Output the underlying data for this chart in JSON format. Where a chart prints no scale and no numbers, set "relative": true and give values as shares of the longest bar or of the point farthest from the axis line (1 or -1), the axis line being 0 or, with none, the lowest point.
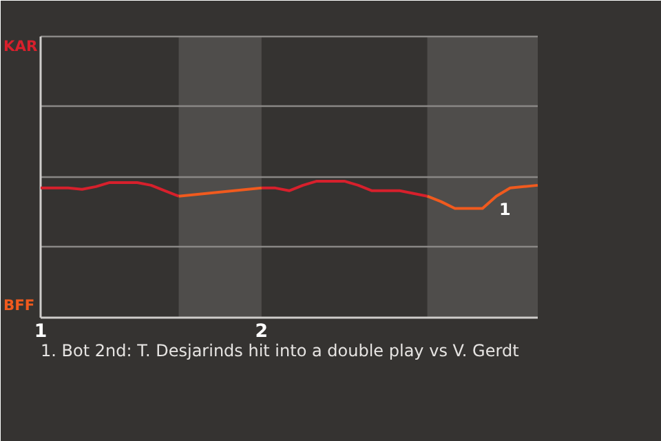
{
  "chart_data": {
    "type": "line",
    "relative": true,
    "categories": [
      "1",
      null,
      null,
      null,
      null,
      null,
      null,
      null,
      null,
      null,
      null,
      null,
      null,
      null,
      null,
      null,
      "2",
      null,
      null,
      null,
      null,
      null,
      null,
      null,
      null,
      null,
      null,
      null,
      null,
      null,
      null,
      null,
      null,
      null,
      null,
      null,
      null
    ],
    "series": [
      {
        "color": "#d7202c",
        "values": [
          0.95,
          0.95,
          0.95,
          0.94,
          0.96,
          0.99,
          0.99,
          0.99,
          0.97,
          0.93,
          0.89,
          null,
          null,
          null,
          null,
          null,
          0.95,
          0.95,
          0.93,
          0.97,
          1,
          1,
          1,
          0.97,
          0.93,
          0.93,
          0.93,
          0.91,
          0.89,
          null,
          null,
          null,
          null,
          null,
          null,
          null,
          null
        ]
      },
      {
        "color": "#f05a1e",
        "values": [
          null,
          null,
          null,
          null,
          null,
          null,
          null,
          null,
          null,
          null,
          0.89,
          0.9,
          0.91,
          0.92,
          0.93,
          0.94,
          0.95,
          null,
          null,
          null,
          null,
          null,
          null,
          null,
          null,
          null,
          null,
          null,
          0.89,
          0.85,
          0.8,
          0.8,
          0.8,
          0.89,
          0.95,
          0.96,
          0.97
        ]
      }
    ],
    "marker": "none",
    "line_style": "solid",
    "ref_lines": [
      {
        "axis": "y",
        "value": 0.52,
        "color": "#8a8886"
      },
      {
        "axis": "y",
        "value": 1.03,
        "color": "#8a8886"
      },
      {
        "axis": "y",
        "value": 1.55,
        "color": "#8a8886"
      },
      {
        "axis": "y",
        "value": 2.06,
        "color": "#8a8886"
      }
    ],
    "annotations": [
      "KAR",
      "BFF",
      "1",
      "1. Bot 2nd: T. Desjarinds hit into a double play vs V. Gerdt"
    ]
  }
}
